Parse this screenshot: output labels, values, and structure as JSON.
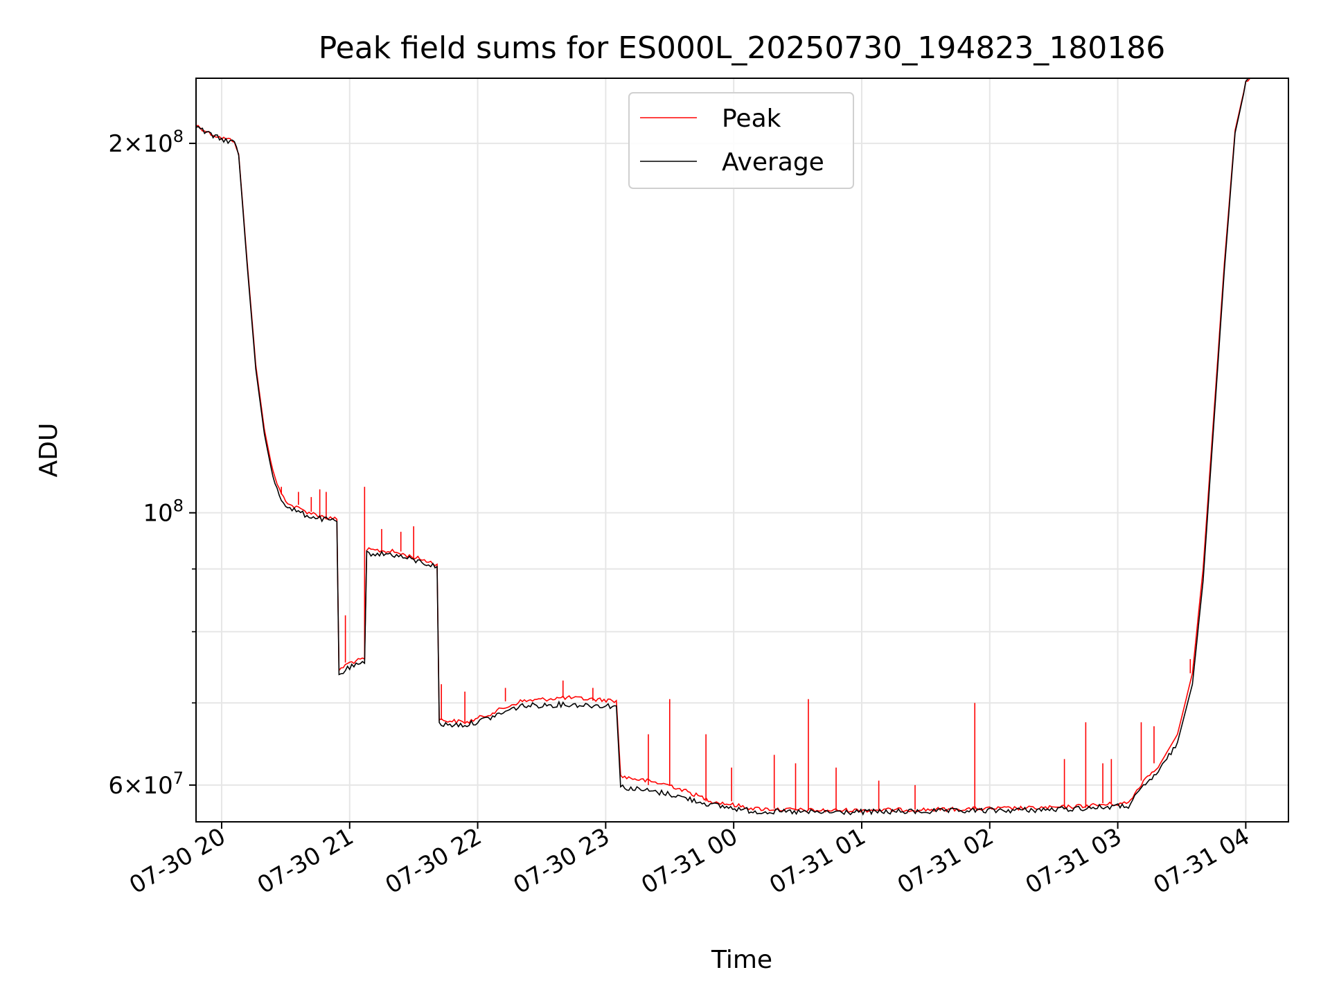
{
  "chart_data": {
    "type": "line",
    "title": "Peak field sums for ES000L_20250730_194823_180186",
    "xlabel": "Time",
    "ylabel": "ADU",
    "y_scale": "log",
    "grid": true,
    "legend_position": "upper center",
    "xlim": [
      "2025-07-30 19:48",
      "2025-07-31 04:20"
    ],
    "ylim": [
      56000000,
      226000000
    ],
    "x_ticks": [
      {
        "value": "2025-07-30 20:00",
        "label": "07-30 20"
      },
      {
        "value": "2025-07-30 21:00",
        "label": "07-30 21"
      },
      {
        "value": "2025-07-30 22:00",
        "label": "07-30 22"
      },
      {
        "value": "2025-07-30 23:00",
        "label": "07-30 23"
      },
      {
        "value": "2025-07-31 00:00",
        "label": "07-31 00"
      },
      {
        "value": "2025-07-31 01:00",
        "label": "07-31 01"
      },
      {
        "value": "2025-07-31 02:00",
        "label": "07-31 02"
      },
      {
        "value": "2025-07-31 03:00",
        "label": "07-31 03"
      },
      {
        "value": "2025-07-31 04:00",
        "label": "07-31 04"
      }
    ],
    "y_ticks": [
      {
        "value": 200000000,
        "base": "2",
        "exp": "8",
        "mantissa": true
      },
      {
        "value": 100000000,
        "base": "10",
        "exp": "8",
        "mantissa": false
      },
      {
        "value": 60000000,
        "base": "6",
        "exp": "7",
        "mantissa": true
      }
    ],
    "y_minor_ticks": [
      70000000,
      80000000,
      90000000
    ],
    "series": [
      {
        "name": "Peak",
        "color": "#ff0000",
        "points": [
          [
            "2025-07-30 19:48",
            207000000
          ],
          [
            "2025-07-30 19:54",
            204000000
          ],
          [
            "2025-07-30 20:00",
            202000000
          ],
          [
            "2025-07-30 20:06",
            201000000
          ],
          [
            "2025-07-30 20:08",
            196000000
          ],
          [
            "2025-07-30 20:12",
            160000000
          ],
          [
            "2025-07-30 20:16",
            132000000
          ],
          [
            "2025-07-30 20:20",
            117000000
          ],
          [
            "2025-07-30 20:24",
            108000000
          ],
          [
            "2025-07-30 20:28",
            103500000
          ],
          [
            "2025-07-30 20:32",
            101500000
          ],
          [
            "2025-07-30 20:40",
            100200000
          ],
          [
            "2025-07-30 20:50",
            99000000
          ],
          [
            "2025-07-30 20:54",
            98800000
          ],
          [
            "2025-07-30 20:55",
            74500000
          ],
          [
            "2025-07-30 21:00",
            75500000
          ],
          [
            "2025-07-30 21:07",
            76000000
          ],
          [
            "2025-07-30 21:08",
            93300000
          ],
          [
            "2025-07-30 21:20",
            93000000
          ],
          [
            "2025-07-30 21:35",
            91500000
          ],
          [
            "2025-07-30 21:41",
            90800000
          ],
          [
            "2025-07-30 21:42",
            67800000
          ],
          [
            "2025-07-30 21:55",
            67500000
          ],
          [
            "2025-07-30 22:05",
            68500000
          ],
          [
            "2025-07-30 22:20",
            70200000
          ],
          [
            "2025-07-30 22:40",
            70700000
          ],
          [
            "2025-07-30 23:05",
            70300000
          ],
          [
            "2025-07-30 23:07",
            61000000
          ],
          [
            "2025-07-30 23:30",
            60000000
          ],
          [
            "2025-07-30 23:50",
            58200000
          ],
          [
            "2025-07-31 00:10",
            57400000
          ],
          [
            "2025-07-31 00:40",
            57200000
          ],
          [
            "2025-07-31 01:30",
            57300000
          ],
          [
            "2025-07-31 02:30",
            57500000
          ],
          [
            "2025-07-31 03:05",
            58000000
          ],
          [
            "2025-07-31 03:12",
            60500000
          ],
          [
            "2025-07-31 03:20",
            62500000
          ],
          [
            "2025-07-31 03:28",
            66000000
          ],
          [
            "2025-07-31 03:35",
            74000000
          ],
          [
            "2025-07-31 03:40",
            90000000
          ],
          [
            "2025-07-31 03:45",
            120000000
          ],
          [
            "2025-07-31 03:50",
            160000000
          ],
          [
            "2025-07-31 03:55",
            205000000
          ],
          [
            "2025-07-31 04:00",
            224000000
          ],
          [
            "2025-07-31 04:02",
            226000000
          ]
        ],
        "spikes": [
          [
            "2025-07-30 20:28",
            105000000
          ],
          [
            "2025-07-30 20:36",
            104000000
          ],
          [
            "2025-07-30 20:42",
            103000000
          ],
          [
            "2025-07-30 20:46",
            104500000
          ],
          [
            "2025-07-30 20:49",
            104000000
          ],
          [
            "2025-07-30 20:58",
            82500000
          ],
          [
            "2025-07-30 21:07",
            105000000
          ],
          [
            "2025-07-30 21:15",
            97000000
          ],
          [
            "2025-07-30 21:24",
            96500000
          ],
          [
            "2025-07-30 21:30",
            97500000
          ],
          [
            "2025-07-30 21:43",
            72500000
          ],
          [
            "2025-07-30 21:54",
            71500000
          ],
          [
            "2025-07-30 22:13",
            72000000
          ],
          [
            "2025-07-30 22:40",
            73000000
          ],
          [
            "2025-07-30 22:54",
            72000000
          ],
          [
            "2025-07-30 23:20",
            66000000
          ],
          [
            "2025-07-30 23:30",
            70500000
          ],
          [
            "2025-07-30 23:47",
            66000000
          ],
          [
            "2025-07-30 23:59",
            62000000
          ],
          [
            "2025-07-31 00:19",
            63500000
          ],
          [
            "2025-07-31 00:29",
            62500000
          ],
          [
            "2025-07-31 00:35",
            70500000
          ],
          [
            "2025-07-31 00:48",
            62000000
          ],
          [
            "2025-07-31 01:08",
            60500000
          ],
          [
            "2025-07-31 01:25",
            60000000
          ],
          [
            "2025-07-31 01:53",
            70000000
          ],
          [
            "2025-07-31 02:35",
            63000000
          ],
          [
            "2025-07-31 02:45",
            67500000
          ],
          [
            "2025-07-31 02:53",
            62500000
          ],
          [
            "2025-07-31 02:57",
            63000000
          ],
          [
            "2025-07-31 03:11",
            67500000
          ],
          [
            "2025-07-31 03:17",
            67000000
          ],
          [
            "2025-07-31 03:34",
            76000000
          ]
        ]
      },
      {
        "name": "Average",
        "color": "#000000",
        "points": [
          [
            "2025-07-30 19:48",
            206500000
          ],
          [
            "2025-07-30 19:54",
            203500000
          ],
          [
            "2025-07-30 20:00",
            201500000
          ],
          [
            "2025-07-30 20:06",
            200500000
          ],
          [
            "2025-07-30 20:08",
            195500000
          ],
          [
            "2025-07-30 20:12",
            159000000
          ],
          [
            "2025-07-30 20:16",
            131000000
          ],
          [
            "2025-07-30 20:20",
            116000000
          ],
          [
            "2025-07-30 20:24",
            107000000
          ],
          [
            "2025-07-30 20:28",
            102500000
          ],
          [
            "2025-07-30 20:32",
            100800000
          ],
          [
            "2025-07-30 20:40",
            99500000
          ],
          [
            "2025-07-30 20:50",
            98600000
          ],
          [
            "2025-07-30 20:54",
            98400000
          ],
          [
            "2025-07-30 20:55",
            73800000
          ],
          [
            "2025-07-30 21:00",
            74800000
          ],
          [
            "2025-07-30 21:07",
            75400000
          ],
          [
            "2025-07-30 21:08",
            92700000
          ],
          [
            "2025-07-30 21:20",
            92500000
          ],
          [
            "2025-07-30 21:35",
            91000000
          ],
          [
            "2025-07-30 21:41",
            90400000
          ],
          [
            "2025-07-30 21:42",
            67200000
          ],
          [
            "2025-07-30 21:55",
            67200000
          ],
          [
            "2025-07-30 22:05",
            68000000
          ],
          [
            "2025-07-30 22:20",
            69600000
          ],
          [
            "2025-07-30 22:40",
            69800000
          ],
          [
            "2025-07-30 23:05",
            69600000
          ],
          [
            "2025-07-30 23:07",
            59800000
          ],
          [
            "2025-07-30 23:30",
            59000000
          ],
          [
            "2025-07-30 23:50",
            57800000
          ],
          [
            "2025-07-31 00:10",
            57100000
          ],
          [
            "2025-07-31 00:40",
            57000000
          ],
          [
            "2025-07-31 01:30",
            57100000
          ],
          [
            "2025-07-31 02:30",
            57300000
          ],
          [
            "2025-07-31 03:05",
            57700000
          ],
          [
            "2025-07-31 03:12",
            59800000
          ],
          [
            "2025-07-31 03:20",
            61800000
          ],
          [
            "2025-07-31 03:28",
            65000000
          ],
          [
            "2025-07-31 03:35",
            72500000
          ],
          [
            "2025-07-31 03:40",
            88000000
          ],
          [
            "2025-07-31 03:45",
            118000000
          ],
          [
            "2025-07-31 03:50",
            158000000
          ],
          [
            "2025-07-31 03:55",
            204000000
          ],
          [
            "2025-07-31 04:00",
            223500000
          ],
          [
            "2025-07-31 04:02",
            226000000
          ]
        ]
      }
    ]
  }
}
